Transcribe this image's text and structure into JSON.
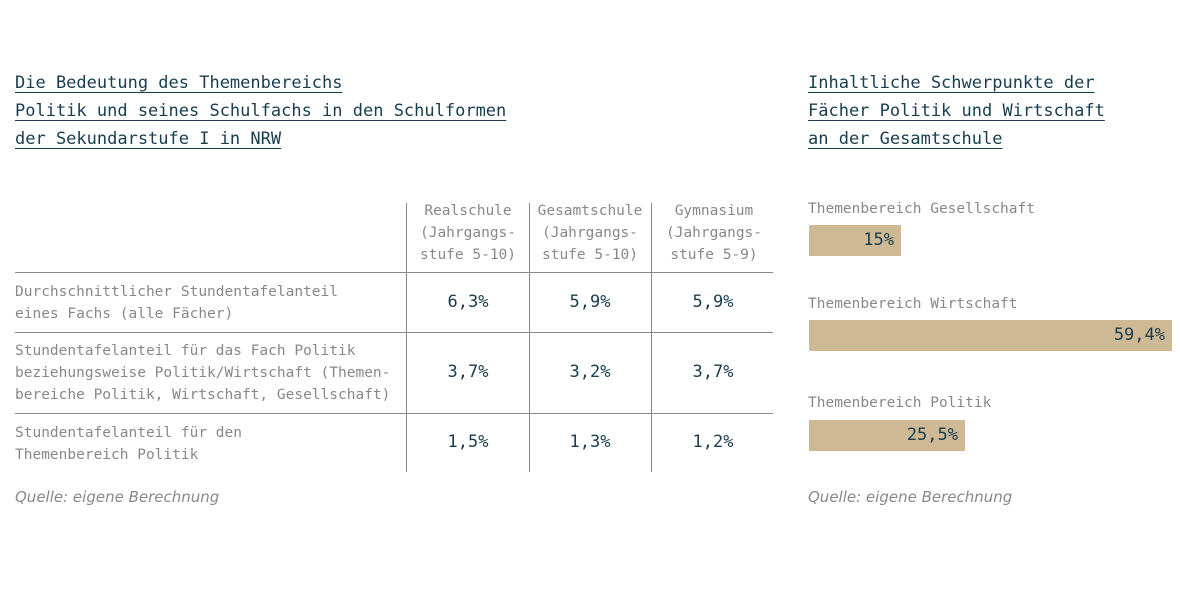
{
  "left": {
    "title_lines": [
      "Die Bedeutung des Themenbereichs",
      "Politik und seines Schulfachs in den Schulformen",
      "der Sekundarstufe I in NRW"
    ],
    "columns": [
      {
        "lines": [
          "Realschule",
          "(Jahrgangs-",
          "stufe 5-10)"
        ]
      },
      {
        "lines": [
          "Gesamtschule",
          "(Jahrgangs-",
          "stufe 5-10)"
        ]
      },
      {
        "lines": [
          "Gymnasium",
          "(Jahrgangs-",
          "stufe 5-9)"
        ]
      }
    ],
    "rows": [
      {
        "label_lines": [
          "Durchschnittlicher Stundentafelanteil",
          "eines Fachs (alle Fächer)"
        ],
        "values": [
          "6,3%",
          "5,9%",
          "5,9%"
        ]
      },
      {
        "label_lines": [
          "Stundentafelanteil für das Fach Politik",
          "beziehungsweise Politik/Wirtschaft (Themen-",
          "bereiche Politik, Wirtschaft, Gesellschaft)"
        ],
        "values": [
          "3,7%",
          "3,2%",
          "3,7%"
        ]
      },
      {
        "label_lines": [
          "Stundentafelanteil für den",
          "Themenbereich Politik"
        ],
        "values": [
          "1,5%",
          "1,3%",
          "1,2%"
        ]
      }
    ],
    "source": "Quelle: eigene Berechnung"
  },
  "right": {
    "title_lines": [
      "Inhaltliche Schwerpunkte der",
      "Fächer Politik und Wirtschaft",
      "an der Gesamtschule"
    ],
    "source": "Quelle: eigene Berechnung"
  },
  "chart_data": {
    "type": "bar",
    "orientation": "horizontal",
    "title": "Inhaltliche Schwerpunkte der Fächer Politik und Wirtschaft an der Gesamtschule",
    "categories": [
      "Themenbereich Gesellschaft",
      "Themenbereich Wirtschaft",
      "Themenbereich Politik"
    ],
    "values": [
      15,
      59.4,
      25.5
    ],
    "value_labels": [
      "15%",
      "59,4%",
      "25,5%"
    ],
    "xlim": [
      0,
      59.4
    ],
    "grid": false,
    "legend": "none",
    "colors": {
      "bar": "#cfb995",
      "value_text": "#173d4f"
    }
  }
}
